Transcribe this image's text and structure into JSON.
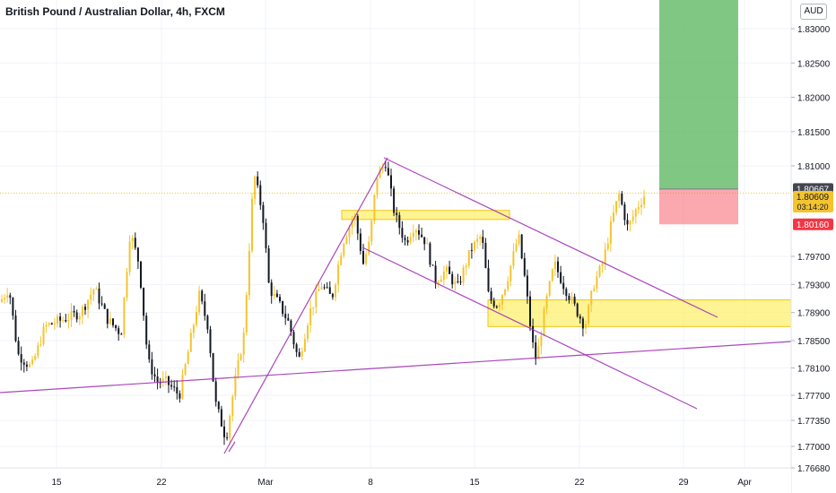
{
  "header": {
    "title": "British Pound / Australian Dollar, 4h, FXCM",
    "currency": "AUD"
  },
  "chart_data": {
    "type": "candlestick",
    "ylim": [
      1.7662,
      1.8355
    ],
    "y_ticks": [
      1.83,
      1.825,
      1.82,
      1.815,
      1.81,
      1.797,
      1.793,
      1.789,
      1.785,
      1.781,
      1.777,
      1.7735,
      1.77,
      1.7668
    ],
    "y_tick_labels": [
      "1.83000",
      "1.82500",
      "1.82000",
      "1.81500",
      "1.81000",
      "1.79700",
      "1.79300",
      "1.78900",
      "1.78500",
      "1.78100",
      "1.77700",
      "1.77350",
      "1.77000",
      "1.76680"
    ],
    "x_labels": [
      "15",
      "22",
      "Mar",
      "8",
      "15",
      "22",
      "29",
      "Apr"
    ],
    "price_labels": [
      {
        "label": "1.80667",
        "value": 1.80667,
        "color": "#434651"
      },
      {
        "label": "1.80609",
        "sub": "03:14:20",
        "value": 1.80609,
        "color": "#f4c430"
      },
      {
        "label": "1.80160",
        "value": 1.8016,
        "color": "#f23645"
      }
    ],
    "position": {
      "entry": 1.80667,
      "target": 1.8355,
      "stop": 1.8016
    },
    "zones": [
      {
        "price_low": 1.8023,
        "price_high": 1.8036
      },
      {
        "price_low": 1.787,
        "price_high": 1.7908
      }
    ]
  }
}
